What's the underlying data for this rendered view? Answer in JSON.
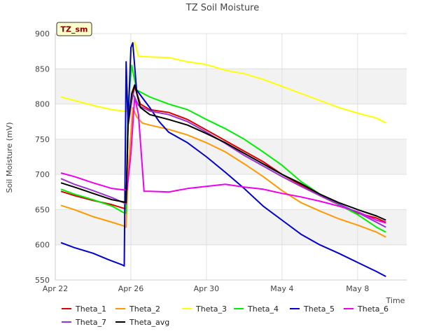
{
  "chart_data": {
    "type": "line",
    "title": "TZ Soil Moisture",
    "xlabel": "Time",
    "ylabel": "Soil Moisture (mV)",
    "tag": "TZ_sm",
    "ylim": [
      550,
      900
    ],
    "xlim": [
      0,
      18.6
    ],
    "yticks": [
      550,
      600,
      650,
      700,
      750,
      800,
      850,
      900
    ],
    "xticks": [
      {
        "value": 0,
        "label": "Apr 22"
      },
      {
        "value": 4,
        "label": "Apr 26"
      },
      {
        "value": 8,
        "label": "Apr 30"
      },
      {
        "value": 12,
        "label": "May 4"
      },
      {
        "value": 16,
        "label": "May 8"
      }
    ],
    "bands": [
      [
        600,
        650
      ],
      [
        700,
        750
      ],
      [
        800,
        850
      ]
    ],
    "series": [
      {
        "name": "Theta_1",
        "color": "#dd0000",
        "points": [
          [
            0.3,
            676
          ],
          [
            1,
            670
          ],
          [
            2,
            663
          ],
          [
            3,
            657
          ],
          [
            3.6,
            652
          ],
          [
            3.75,
            651
          ],
          [
            3.85,
            770
          ],
          [
            4.05,
            805
          ],
          [
            4.2,
            825
          ],
          [
            4.5,
            800
          ],
          [
            5,
            792
          ],
          [
            6,
            788
          ],
          [
            7,
            778
          ],
          [
            8,
            763
          ],
          [
            9,
            748
          ],
          [
            10,
            733
          ],
          [
            11,
            718
          ],
          [
            12,
            700
          ],
          [
            13,
            685
          ],
          [
            14,
            670
          ],
          [
            15,
            657
          ],
          [
            16,
            645
          ],
          [
            17,
            638
          ],
          [
            17.5,
            632
          ]
        ]
      },
      {
        "name": "Theta_2",
        "color": "#ff9900",
        "points": [
          [
            0.3,
            656
          ],
          [
            1,
            650
          ],
          [
            2,
            640
          ],
          [
            3,
            632
          ],
          [
            3.6,
            627
          ],
          [
            3.75,
            625
          ],
          [
            3.85,
            700
          ],
          [
            4.1,
            795
          ],
          [
            4.3,
            782
          ],
          [
            4.6,
            773
          ],
          [
            5,
            770
          ],
          [
            6,
            764
          ],
          [
            7,
            756
          ],
          [
            8,
            745
          ],
          [
            9,
            732
          ],
          [
            10,
            715
          ],
          [
            11,
            697
          ],
          [
            12,
            677
          ],
          [
            13,
            660
          ],
          [
            14,
            648
          ],
          [
            15,
            637
          ],
          [
            16,
            628
          ],
          [
            17,
            618
          ],
          [
            17.5,
            611
          ]
        ]
      },
      {
        "name": "Theta_3",
        "color": "#ffff00",
        "points": [
          [
            0.3,
            810
          ],
          [
            1,
            805
          ],
          [
            2,
            798
          ],
          [
            3,
            792
          ],
          [
            3.6,
            790
          ],
          [
            3.75,
            789
          ],
          [
            3.9,
            830
          ],
          [
            4.05,
            875
          ],
          [
            4.2,
            888
          ],
          [
            4.4,
            868
          ],
          [
            5,
            867
          ],
          [
            6,
            866
          ],
          [
            7,
            860
          ],
          [
            8,
            856
          ],
          [
            9,
            848
          ],
          [
            10,
            843
          ],
          [
            11,
            835
          ],
          [
            12,
            825
          ],
          [
            13,
            815
          ],
          [
            14,
            805
          ],
          [
            15,
            795
          ],
          [
            16,
            787
          ],
          [
            17,
            780
          ],
          [
            17.5,
            773
          ]
        ]
      },
      {
        "name": "Theta_4",
        "color": "#00ee00",
        "points": [
          [
            0.3,
            679
          ],
          [
            1,
            672
          ],
          [
            2,
            664
          ],
          [
            3,
            655
          ],
          [
            3.6,
            646
          ],
          [
            3.75,
            645
          ],
          [
            3.85,
            800
          ],
          [
            4.05,
            855
          ],
          [
            4.3,
            820
          ],
          [
            5,
            810
          ],
          [
            6,
            800
          ],
          [
            7,
            792
          ],
          [
            8,
            778
          ],
          [
            9,
            765
          ],
          [
            10,
            750
          ],
          [
            11,
            732
          ],
          [
            12,
            713
          ],
          [
            13,
            690
          ],
          [
            14,
            672
          ],
          [
            15,
            657
          ],
          [
            16,
            643
          ],
          [
            17,
            625
          ],
          [
            17.5,
            618
          ]
        ]
      },
      {
        "name": "Theta_5",
        "color": "#0000cc",
        "points": [
          [
            0.3,
            603
          ],
          [
            1,
            596
          ],
          [
            2,
            588
          ],
          [
            2.8,
            579
          ],
          [
            3.5,
            572
          ],
          [
            3.65,
            570
          ],
          [
            3.75,
            860
          ],
          [
            3.85,
            770
          ],
          [
            4.0,
            880
          ],
          [
            4.1,
            887
          ],
          [
            4.3,
            820
          ],
          [
            5,
            795
          ],
          [
            5.5,
            775
          ],
          [
            6,
            760
          ],
          [
            7,
            745
          ],
          [
            8,
            725
          ],
          [
            9,
            703
          ],
          [
            10,
            680
          ],
          [
            11,
            655
          ],
          [
            12,
            635
          ],
          [
            13,
            615
          ],
          [
            14,
            600
          ],
          [
            15,
            588
          ],
          [
            16,
            575
          ],
          [
            17,
            562
          ],
          [
            17.5,
            555
          ]
        ]
      },
      {
        "name": "Theta_6",
        "color": "#ee00ee",
        "points": [
          [
            0.3,
            702
          ],
          [
            1,
            697
          ],
          [
            2,
            688
          ],
          [
            3,
            680
          ],
          [
            3.6,
            678
          ],
          [
            3.8,
            678
          ],
          [
            4.0,
            730
          ],
          [
            4.2,
            810
          ],
          [
            4.4,
            785
          ],
          [
            4.7,
            676
          ],
          [
            5,
            676
          ],
          [
            6,
            675
          ],
          [
            7,
            680
          ],
          [
            8,
            683
          ],
          [
            9,
            686
          ],
          [
            10,
            682
          ],
          [
            11,
            679
          ],
          [
            12,
            673
          ],
          [
            13,
            668
          ],
          [
            14,
            662
          ],
          [
            15,
            655
          ],
          [
            16,
            647
          ],
          [
            17,
            635
          ],
          [
            17.5,
            631
          ]
        ]
      },
      {
        "name": "Theta_7",
        "color": "#9933cc",
        "points": [
          [
            0.3,
            694
          ],
          [
            1,
            686
          ],
          [
            2,
            677
          ],
          [
            3,
            667
          ],
          [
            3.6,
            660
          ],
          [
            3.75,
            658
          ],
          [
            3.85,
            770
          ],
          [
            4.1,
            815
          ],
          [
            4.4,
            798
          ],
          [
            5,
            790
          ],
          [
            6,
            785
          ],
          [
            7,
            775
          ],
          [
            8,
            760
          ],
          [
            9,
            744
          ],
          [
            10,
            727
          ],
          [
            11,
            712
          ],
          [
            12,
            697
          ],
          [
            13,
            683
          ],
          [
            14,
            670
          ],
          [
            15,
            658
          ],
          [
            16,
            646
          ],
          [
            17,
            632
          ],
          [
            17.5,
            625
          ]
        ]
      },
      {
        "name": "Theta_avg",
        "color": "#000000",
        "points": [
          [
            0.3,
            688
          ],
          [
            1,
            682
          ],
          [
            2,
            673
          ],
          [
            3,
            664
          ],
          [
            3.6,
            661
          ],
          [
            3.75,
            660
          ],
          [
            3.85,
            770
          ],
          [
            4.05,
            815
          ],
          [
            4.2,
            827
          ],
          [
            4.5,
            795
          ],
          [
            5,
            785
          ],
          [
            6,
            778
          ],
          [
            7,
            770
          ],
          [
            8,
            758
          ],
          [
            9,
            745
          ],
          [
            10,
            730
          ],
          [
            11,
            715
          ],
          [
            12,
            700
          ],
          [
            13,
            687
          ],
          [
            14,
            672
          ],
          [
            15,
            660
          ],
          [
            16,
            650
          ],
          [
            17,
            641
          ],
          [
            17.5,
            635
          ]
        ]
      }
    ]
  }
}
